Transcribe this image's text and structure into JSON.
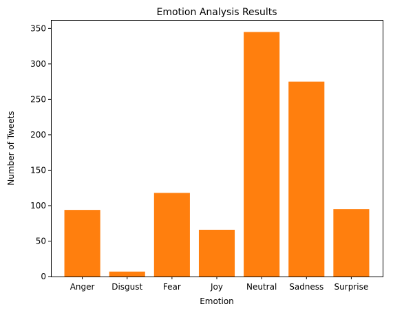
{
  "chart_data": {
    "type": "bar",
    "title": "Emotion Analysis Results",
    "xlabel": "Emotion",
    "ylabel": "Number of Tweets",
    "categories": [
      "Anger",
      "Disgust",
      "Fear",
      "Joy",
      "Neutral",
      "Sadness",
      "Surprise"
    ],
    "values": [
      94,
      7,
      118,
      66,
      345,
      275,
      95
    ],
    "ylim": [
      0,
      362
    ],
    "yticks": [
      0,
      50,
      100,
      150,
      200,
      250,
      300,
      350
    ],
    "grid": false,
    "legend": "none",
    "bar_color": "#ff7f0e"
  }
}
